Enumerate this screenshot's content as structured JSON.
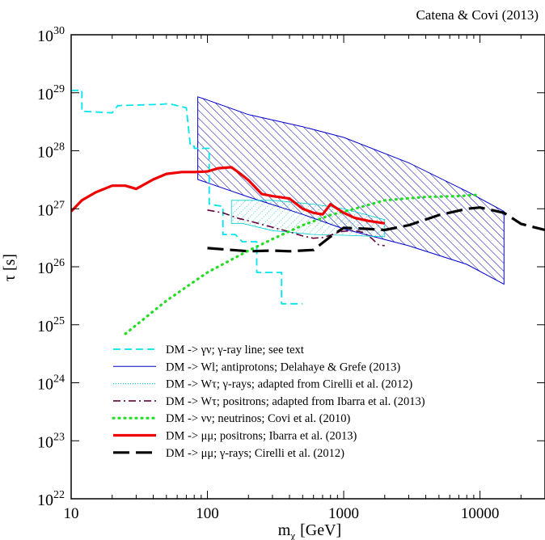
{
  "chart_data": {
    "type": "line",
    "annotation": "Catena & Covi (2013)",
    "xlabel_main": "m",
    "xlabel_sub": "χ",
    "xlabel_unit": "[GeV]",
    "ylabel": "τ [s]",
    "xscale": "log",
    "yscale": "log",
    "xlim": [
      10,
      30000
    ],
    "ylim": [
      1e+22,
      1e+30
    ],
    "grid": false,
    "legend_position": "bottom-center",
    "x_ticks": [
      {
        "value": 10,
        "label": "10"
      },
      {
        "value": 100,
        "label": "100"
      },
      {
        "value": 1000,
        "label": "1000"
      },
      {
        "value": 10000,
        "label": "10000"
      }
    ],
    "y_ticks": [
      {
        "value": 1e+22,
        "exp": "22"
      },
      {
        "value": 1e+23,
        "exp": "23"
      },
      {
        "value": 1e+24,
        "exp": "24"
      },
      {
        "value": 1e+25,
        "exp": "25"
      },
      {
        "value": 1e+26,
        "exp": "26"
      },
      {
        "value": 1e+27,
        "exp": "27"
      },
      {
        "value": 1e+28,
        "exp": "28"
      },
      {
        "value": 1e+29,
        "exp": "29"
      },
      {
        "value": 1e+30,
        "exp": "30"
      }
    ],
    "series": [
      {
        "name": "DM -> γν; γ-ray line; see text",
        "style": "dashed",
        "color": "#00e5ee",
        "width": 1.8,
        "fill": false,
        "points": [
          [
            10,
            1.1e+29
          ],
          [
            11,
            1.1e+29
          ],
          [
            12,
            1.1e+29
          ],
          [
            12,
            4.8e+28
          ],
          [
            20,
            4.5e+28
          ],
          [
            22,
            6e+28
          ],
          [
            45,
            6.3e+28
          ],
          [
            52,
            6.5e+28
          ],
          [
            70,
            5.5e+28
          ],
          [
            75,
            1.2e+28
          ],
          [
            80,
            1.2e+28
          ],
          [
            80,
            1.1e+28
          ],
          [
            103,
            1.1e+28
          ],
          [
            103,
            1.2e+27
          ],
          [
            130,
            1.1e+27
          ],
          [
            130,
            3.6e+26
          ],
          [
            160,
            3.6e+26
          ],
          [
            180,
            2.7e+26
          ],
          [
            230,
            2.7e+26
          ],
          [
            230,
            8e+25
          ],
          [
            350,
            8e+25
          ],
          [
            350,
            2.3e+25
          ],
          [
            500,
            2.3e+25
          ]
        ]
      },
      {
        "name": "DM -> Wl; antiprotons; Delahaye & Grefe (2013)",
        "style": "band",
        "color": "#0000cc",
        "width": 1,
        "fill": true,
        "hatch_color": "#0000aa",
        "hatch_direction": "right",
        "points": [
          [
            85,
            8.5e+28
          ],
          [
            100,
            7.5e+28
          ],
          [
            200,
            4.2e+28
          ],
          [
            500,
            2.6e+28
          ],
          [
            1000,
            1.7e+28
          ],
          [
            3000,
            6.2e+27
          ],
          [
            8000,
            2e+27
          ],
          [
            15000,
            9e+26
          ],
          [
            15000,
            5e+25
          ],
          [
            8000,
            1.1e+26
          ],
          [
            3000,
            2.3e+26
          ],
          [
            1000,
            4.5e+26
          ],
          [
            500,
            8e+26
          ],
          [
            200,
            1.6e+27
          ],
          [
            85,
            3.2e+27
          ]
        ]
      },
      {
        "name": "DM -> Wτ; γ-rays; adapted from Cirelli et al. (2012)",
        "style": "band",
        "color": "#00cfcf",
        "width": 0.8,
        "fill": true,
        "hatch_color": "#00b4b4",
        "hatch_direction": "left",
        "points": [
          [
            150,
            1.4e+27
          ],
          [
            300,
            1.4e+27
          ],
          [
            600,
            1.2e+27
          ],
          [
            1000,
            1e+27
          ],
          [
            2000,
            6.5e+26
          ],
          [
            2000,
            3.3e+26
          ],
          [
            1000,
            3.5e+26
          ],
          [
            600,
            3.6e+26
          ],
          [
            300,
            4.2e+26
          ],
          [
            180,
            5.6e+26
          ],
          [
            150,
            5.6e+26
          ]
        ]
      },
      {
        "name": "DM -> Wτ; positrons; adapted from Ibarra et al. (2013)",
        "style": "dashdot",
        "color": "#66003a",
        "width": 1.6,
        "fill": false,
        "points": [
          [
            100,
            9.5e+26
          ],
          [
            130,
            8.5e+26
          ],
          [
            170,
            6.8e+26
          ],
          [
            200,
            6.2e+26
          ],
          [
            300,
            4.8e+26
          ],
          [
            400,
            4e+26
          ],
          [
            500,
            3.4e+26
          ],
          [
            600,
            3.1e+26
          ],
          [
            700,
            3.2e+26
          ],
          [
            800,
            3.5e+26
          ],
          [
            900,
            3.9e+26
          ],
          [
            1000,
            4.1e+26
          ],
          [
            1200,
            4.2e+26
          ],
          [
            1400,
            3.9e+26
          ],
          [
            1600,
            3.1e+26
          ],
          [
            1800,
            2.4e+26
          ],
          [
            2000,
            2.3e+26
          ]
        ]
      },
      {
        "name": "DM -> νν; neutrinos; Covi et al. (2010)",
        "style": "dotted",
        "color": "#22dd22",
        "width": 3.2,
        "fill": false,
        "points": [
          [
            25,
            7e+24
          ],
          [
            50,
            2.6e+25
          ],
          [
            100,
            8e+25
          ],
          [
            200,
            1.9e+26
          ],
          [
            300,
            3e+26
          ],
          [
            500,
            5.2e+26
          ],
          [
            800,
            7.8e+26
          ],
          [
            1200,
            1e+27
          ],
          [
            2000,
            1.4e+27
          ],
          [
            4000,
            1.6e+27
          ],
          [
            7000,
            1.65e+27
          ],
          [
            10000,
            1.75e+27
          ]
        ]
      },
      {
        "name": "DM -> μμ; positrons; Ibarra et al. (2013)",
        "style": "solid",
        "color": "#ee0000",
        "width": 3.2,
        "fill": false,
        "points": [
          [
            10,
            9e+26
          ],
          [
            12,
            1.4e+27
          ],
          [
            15,
            1.9e+27
          ],
          [
            20,
            2.5e+27
          ],
          [
            25,
            2.5e+27
          ],
          [
            30,
            2.2e+27
          ],
          [
            40,
            3.2e+27
          ],
          [
            50,
            4e+27
          ],
          [
            65,
            4.3e+27
          ],
          [
            80,
            4.3e+27
          ],
          [
            100,
            4.4e+27
          ],
          [
            120,
            5e+27
          ],
          [
            150,
            5.2e+27
          ],
          [
            170,
            4.2e+27
          ],
          [
            200,
            3.1e+27
          ],
          [
            250,
            1.8e+27
          ],
          [
            300,
            1.65e+27
          ],
          [
            400,
            1.5e+27
          ],
          [
            500,
            1e+27
          ],
          [
            600,
            8.5e+26
          ],
          [
            700,
            8e+26
          ],
          [
            800,
            1.2e+27
          ],
          [
            1000,
            8.5e+26
          ],
          [
            1200,
            7e+26
          ],
          [
            1500,
            6.2e+26
          ],
          [
            2000,
            5.6e+26
          ]
        ]
      },
      {
        "name": "DM -> μμ; γ-rays; Cirelli et al. (2012)",
        "style": "longdash",
        "color": "#000000",
        "width": 3.2,
        "fill": false,
        "points": [
          [
            100,
            2.1e+26
          ],
          [
            150,
            1.95e+26
          ],
          [
            200,
            1.85e+26
          ],
          [
            300,
            1.9e+26
          ],
          [
            400,
            1.85e+26
          ],
          [
            600,
            1.95e+26
          ],
          [
            800,
            3.3e+26
          ],
          [
            1000,
            4.7e+26
          ],
          [
            1500,
            4.5e+26
          ],
          [
            2000,
            4.3e+26
          ],
          [
            3000,
            5.2e+26
          ],
          [
            5000,
            7.8e+26
          ],
          [
            8000,
            1e+27
          ],
          [
            10000,
            1.05e+27
          ],
          [
            15000,
            8.5e+26
          ],
          [
            20000,
            5.5e+26
          ],
          [
            30000,
            4.3e+26
          ]
        ]
      }
    ]
  }
}
